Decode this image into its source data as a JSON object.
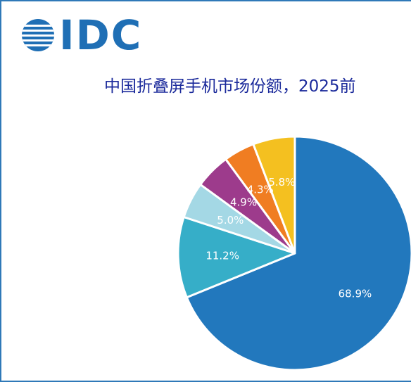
{
  "brand": {
    "logo_text": "IDC",
    "color": "#1f6fb5"
  },
  "chart_data": {
    "type": "pie",
    "title": "中国折叠屏手机市场份额，2025前",
    "series": [
      {
        "values": [
          68.9,
          11.2,
          5.0,
          4.9,
          4.3,
          5.8
        ],
        "labels": [
          "68.9%",
          "11.2%",
          "5.0%",
          "4.9%",
          "4.3%",
          "5.8%"
        ],
        "colors": [
          "#2278bd",
          "#36aec8",
          "#a4d8e5",
          "#9d3b8c",
          "#f07d22",
          "#f4c020"
        ]
      }
    ],
    "start_angle": "12 o'clock",
    "direction": "clockwise",
    "legend": "none"
  }
}
